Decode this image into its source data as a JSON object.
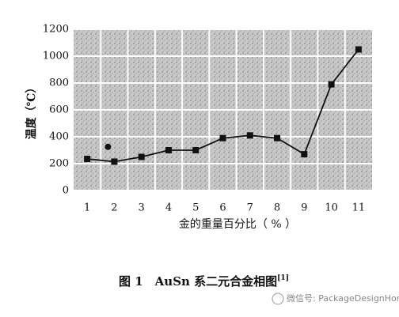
{
  "chart_data": {
    "type": "line",
    "ylabel": "温度（℃）",
    "xlabel": "金的重量百分比（ % ）",
    "caption": "图 1　AuSn 系二元合金相图",
    "caption_ref": "[1]",
    "watermark": "微信号: PackageDesignHome",
    "categories": [
      "1",
      "2",
      "3",
      "4",
      "5",
      "6",
      "7",
      "8",
      "9",
      "10",
      "11"
    ],
    "series": [
      {
        "color": "#111111",
        "marker": "square",
        "values": [
          235,
          215,
          250,
          300,
          300,
          390,
          410,
          390,
          270,
          790,
          1050
        ]
      },
      {
        "color": "#111111",
        "marker": "circle",
        "values": [
          null,
          325,
          null,
          null,
          null,
          null,
          null,
          null,
          null,
          null,
          null
        ]
      }
    ],
    "ylim": [
      0,
      1200
    ],
    "yticks": [
      0,
      200,
      400,
      600,
      800,
      1000,
      1200
    ],
    "grid": true
  }
}
